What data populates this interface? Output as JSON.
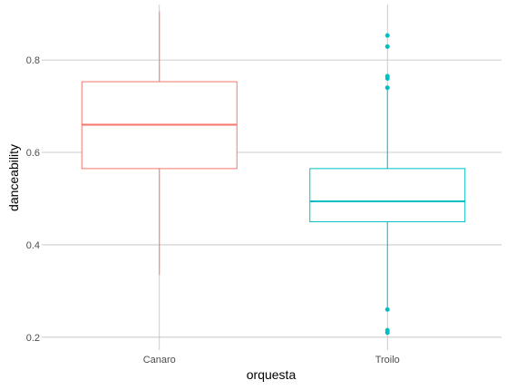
{
  "chart_data": {
    "type": "boxplot",
    "xlabel": "orquesta",
    "ylabel": "danceability",
    "categories": [
      "Canaro",
      "Troilo"
    ],
    "ylim": [
      0.18,
      0.92
    ],
    "yticks": [
      0.2,
      0.4,
      0.6,
      0.8
    ],
    "ytick_labels": [
      "0.2",
      "0.4",
      "0.6",
      "0.8"
    ],
    "grid": true,
    "legend": "none",
    "boxes": [
      {
        "category": "Canaro",
        "color": "#f8766d",
        "min": 0.335,
        "q1": 0.565,
        "median": 0.66,
        "q3": 0.753,
        "max": 0.905,
        "outliers": []
      },
      {
        "category": "Troilo",
        "color": "#00bfc4",
        "min": 0.265,
        "q1": 0.45,
        "median": 0.494,
        "q3": 0.565,
        "max": 0.735,
        "outliers": [
          0.853,
          0.829,
          0.765,
          0.76,
          0.74,
          0.26,
          0.215,
          0.21
        ]
      }
    ],
    "colors": {
      "grid": "#bebebe",
      "tick_text": "#4d4d4d",
      "axis_title": "#000000"
    }
  }
}
